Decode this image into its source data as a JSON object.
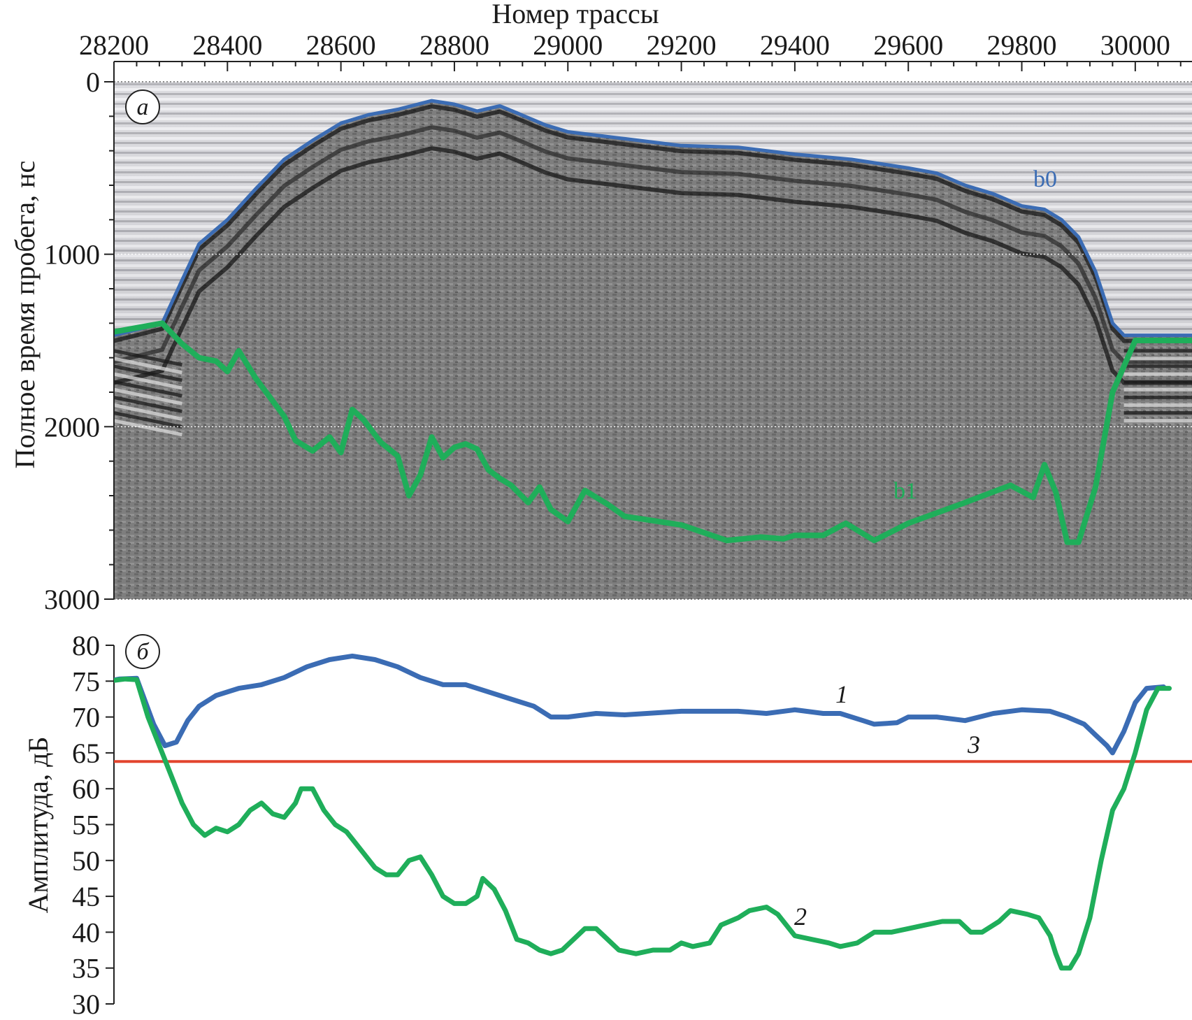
{
  "chart_data": [
    {
      "panel": "a",
      "type": "line",
      "xlabel": "Номер трассы",
      "ylabel": "Полное время пробега, нс",
      "xlim": [
        28200,
        30100
      ],
      "ylim": [
        0,
        3000
      ],
      "y_inverted": true,
      "x_ticks": [
        28200,
        28400,
        28600,
        28800,
        29000,
        29200,
        29400,
        29600,
        29800,
        30000
      ],
      "y_ticks": [
        0,
        1000,
        2000,
        3000
      ],
      "gridlines_y": [
        1000,
        2000
      ],
      "background": "grayscale radargram",
      "series": [
        {
          "name": "b0",
          "color": "#3b6cb4",
          "points": [
            [
              28200,
              1470
            ],
            [
              28285,
              1400
            ],
            [
              28320,
              1150
            ],
            [
              28350,
              940
            ],
            [
              28400,
              800
            ],
            [
              28450,
              620
            ],
            [
              28500,
              450
            ],
            [
              28550,
              340
            ],
            [
              28600,
              240
            ],
            [
              28650,
              190
            ],
            [
              28700,
              160
            ],
            [
              28760,
              110
            ],
            [
              28800,
              130
            ],
            [
              28840,
              170
            ],
            [
              28880,
              140
            ],
            [
              28910,
              180
            ],
            [
              28960,
              250
            ],
            [
              29000,
              290
            ],
            [
              29100,
              330
            ],
            [
              29200,
              370
            ],
            [
              29300,
              380
            ],
            [
              29400,
              420
            ],
            [
              29500,
              450
            ],
            [
              29600,
              500
            ],
            [
              29650,
              530
            ],
            [
              29700,
              600
            ],
            [
              29750,
              650
            ],
            [
              29800,
              720
            ],
            [
              29840,
              740
            ],
            [
              29870,
              800
            ],
            [
              29900,
              900
            ],
            [
              29930,
              1100
            ],
            [
              29960,
              1400
            ],
            [
              29980,
              1470
            ],
            [
              30100,
              1470
            ]
          ]
        },
        {
          "name": "b1",
          "color": "#1fae5a",
          "points": [
            [
              28200,
              1450
            ],
            [
              28285,
              1400
            ],
            [
              28320,
              1520
            ],
            [
              28350,
              1600
            ],
            [
              28380,
              1620
            ],
            [
              28400,
              1680
            ],
            [
              28420,
              1560
            ],
            [
              28450,
              1720
            ],
            [
              28500,
              1940
            ],
            [
              28520,
              2080
            ],
            [
              28550,
              2140
            ],
            [
              28580,
              2060
            ],
            [
              28600,
              2150
            ],
            [
              28620,
              1900
            ],
            [
              28640,
              1960
            ],
            [
              28670,
              2090
            ],
            [
              28700,
              2170
            ],
            [
              28720,
              2400
            ],
            [
              28740,
              2280
            ],
            [
              28760,
              2060
            ],
            [
              28780,
              2180
            ],
            [
              28800,
              2120
            ],
            [
              28820,
              2100
            ],
            [
              28840,
              2130
            ],
            [
              28860,
              2250
            ],
            [
              28880,
              2300
            ],
            [
              28900,
              2340
            ],
            [
              28930,
              2440
            ],
            [
              28950,
              2350
            ],
            [
              28970,
              2480
            ],
            [
              29000,
              2550
            ],
            [
              29030,
              2370
            ],
            [
              29070,
              2450
            ],
            [
              29100,
              2520
            ],
            [
              29200,
              2570
            ],
            [
              29280,
              2660
            ],
            [
              29340,
              2640
            ],
            [
              29380,
              2650
            ],
            [
              29400,
              2630
            ],
            [
              29450,
              2630
            ],
            [
              29490,
              2560
            ],
            [
              29540,
              2660
            ],
            [
              29600,
              2560
            ],
            [
              29700,
              2440
            ],
            [
              29780,
              2340
            ],
            [
              29820,
              2410
            ],
            [
              29840,
              2220
            ],
            [
              29860,
              2380
            ],
            [
              29880,
              2670
            ],
            [
              29900,
              2670
            ],
            [
              29930,
              2350
            ],
            [
              29960,
              1800
            ],
            [
              30000,
              1500
            ],
            [
              30050,
              1500
            ],
            [
              30100,
              1500
            ]
          ]
        }
      ]
    },
    {
      "panel": "б",
      "type": "line",
      "xlabel": "",
      "ylabel": "Амплитуда, дБ",
      "xlim": [
        28200,
        30100
      ],
      "ylim": [
        30,
        80
      ],
      "y_ticks": [
        30,
        35,
        40,
        45,
        50,
        55,
        60,
        65,
        70,
        75,
        80
      ],
      "series": [
        {
          "name": "1",
          "color": "#3b6cb4",
          "points": [
            [
              28190,
              75
            ],
            [
              28210,
              75.3
            ],
            [
              28240,
              75.4
            ],
            [
              28270,
              69
            ],
            [
              28290,
              66
            ],
            [
              28310,
              66.5
            ],
            [
              28330,
              69.5
            ],
            [
              28350,
              71.5
            ],
            [
              28380,
              73
            ],
            [
              28420,
              74
            ],
            [
              28460,
              74.5
            ],
            [
              28500,
              75.5
            ],
            [
              28540,
              77
            ],
            [
              28580,
              78
            ],
            [
              28620,
              78.5
            ],
            [
              28660,
              78
            ],
            [
              28700,
              77
            ],
            [
              28740,
              75.5
            ],
            [
              28780,
              74.5
            ],
            [
              28820,
              74.5
            ],
            [
              28860,
              73.5
            ],
            [
              28900,
              72.5
            ],
            [
              28940,
              71.5
            ],
            [
              28970,
              70
            ],
            [
              29000,
              70
            ],
            [
              29050,
              70.5
            ],
            [
              29100,
              70.3
            ],
            [
              29200,
              70.8
            ],
            [
              29300,
              70.8
            ],
            [
              29350,
              70.5
            ],
            [
              29400,
              71
            ],
            [
              29450,
              70.5
            ],
            [
              29480,
              70.5
            ],
            [
              29520,
              69.5
            ],
            [
              29540,
              69
            ],
            [
              29580,
              69.2
            ],
            [
              29600,
              70
            ],
            [
              29650,
              70
            ],
            [
              29700,
              69.5
            ],
            [
              29750,
              70.5
            ],
            [
              29800,
              71
            ],
            [
              29850,
              70.8
            ],
            [
              29880,
              70
            ],
            [
              29910,
              69
            ],
            [
              29930,
              67.5
            ],
            [
              29950,
              66
            ],
            [
              29960,
              65
            ],
            [
              29980,
              68
            ],
            [
              30000,
              72
            ],
            [
              30020,
              74
            ],
            [
              30050,
              74.2
            ]
          ]
        },
        {
          "name": "2",
          "color": "#1fae5a",
          "points": [
            [
              28190,
              75
            ],
            [
              28220,
              75.3
            ],
            [
              28240,
              75.2
            ],
            [
              28260,
              70
            ],
            [
              28280,
              66
            ],
            [
              28300,
              62
            ],
            [
              28320,
              58
            ],
            [
              28340,
              55
            ],
            [
              28360,
              53.5
            ],
            [
              28380,
              54.5
            ],
            [
              28400,
              54
            ],
            [
              28420,
              55
            ],
            [
              28440,
              57
            ],
            [
              28460,
              58
            ],
            [
              28480,
              56.5
            ],
            [
              28500,
              56
            ],
            [
              28520,
              58
            ],
            [
              28530,
              60
            ],
            [
              28550,
              60
            ],
            [
              28570,
              57
            ],
            [
              28590,
              55
            ],
            [
              28610,
              54
            ],
            [
              28640,
              51
            ],
            [
              28660,
              49
            ],
            [
              28680,
              48
            ],
            [
              28700,
              48
            ],
            [
              28720,
              50
            ],
            [
              28740,
              50.5
            ],
            [
              28760,
              48
            ],
            [
              28780,
              45
            ],
            [
              28800,
              44
            ],
            [
              28820,
              44
            ],
            [
              28840,
              45
            ],
            [
              28850,
              47.5
            ],
            [
              28870,
              46
            ],
            [
              28890,
              43
            ],
            [
              28910,
              39
            ],
            [
              28930,
              38.5
            ],
            [
              28950,
              37.5
            ],
            [
              28970,
              37
            ],
            [
              28990,
              37.5
            ],
            [
              29010,
              39
            ],
            [
              29030,
              40.5
            ],
            [
              29050,
              40.5
            ],
            [
              29070,
              39
            ],
            [
              29090,
              37.5
            ],
            [
              29120,
              37
            ],
            [
              29150,
              37.5
            ],
            [
              29180,
              37.5
            ],
            [
              29200,
              38.5
            ],
            [
              29220,
              38
            ],
            [
              29250,
              38.5
            ],
            [
              29270,
              41
            ],
            [
              29300,
              42
            ],
            [
              29320,
              43
            ],
            [
              29350,
              43.5
            ],
            [
              29370,
              42.5
            ],
            [
              29400,
              39.5
            ],
            [
              29430,
              39
            ],
            [
              29460,
              38.5
            ],
            [
              29480,
              38
            ],
            [
              29510,
              38.5
            ],
            [
              29540,
              40
            ],
            [
              29570,
              40
            ],
            [
              29600,
              40.5
            ],
            [
              29630,
              41
            ],
            [
              29660,
              41.5
            ],
            [
              29690,
              41.5
            ],
            [
              29710,
              40
            ],
            [
              29730,
              40
            ],
            [
              29760,
              41.5
            ],
            [
              29780,
              43
            ],
            [
              29810,
              42.5
            ],
            [
              29830,
              42
            ],
            [
              29850,
              39.5
            ],
            [
              29860,
              37
            ],
            [
              29870,
              35
            ],
            [
              29885,
              35
            ],
            [
              29900,
              37
            ],
            [
              29920,
              42
            ],
            [
              29940,
              50
            ],
            [
              29960,
              57
            ],
            [
              29980,
              60
            ],
            [
              30000,
              65
            ],
            [
              30020,
              71
            ],
            [
              30040,
              74
            ],
            [
              30060,
              74
            ]
          ]
        },
        {
          "name": "3",
          "color": "#e2452e",
          "points": [
            [
              28200,
              63.8
            ],
            [
              30110,
              63.8
            ]
          ]
        }
      ]
    }
  ],
  "labels": {
    "top_xlabel": "Номер трассы",
    "top_ylabel": "Полное время пробега, нс",
    "bottom_ylabel": "Амплитуда, дБ",
    "panel_a": "а",
    "panel_b": "б",
    "horizon_b0": "b0",
    "horizon_b1": "b1",
    "curve_1": "1",
    "curve_2": "2",
    "curve_3": "3"
  }
}
